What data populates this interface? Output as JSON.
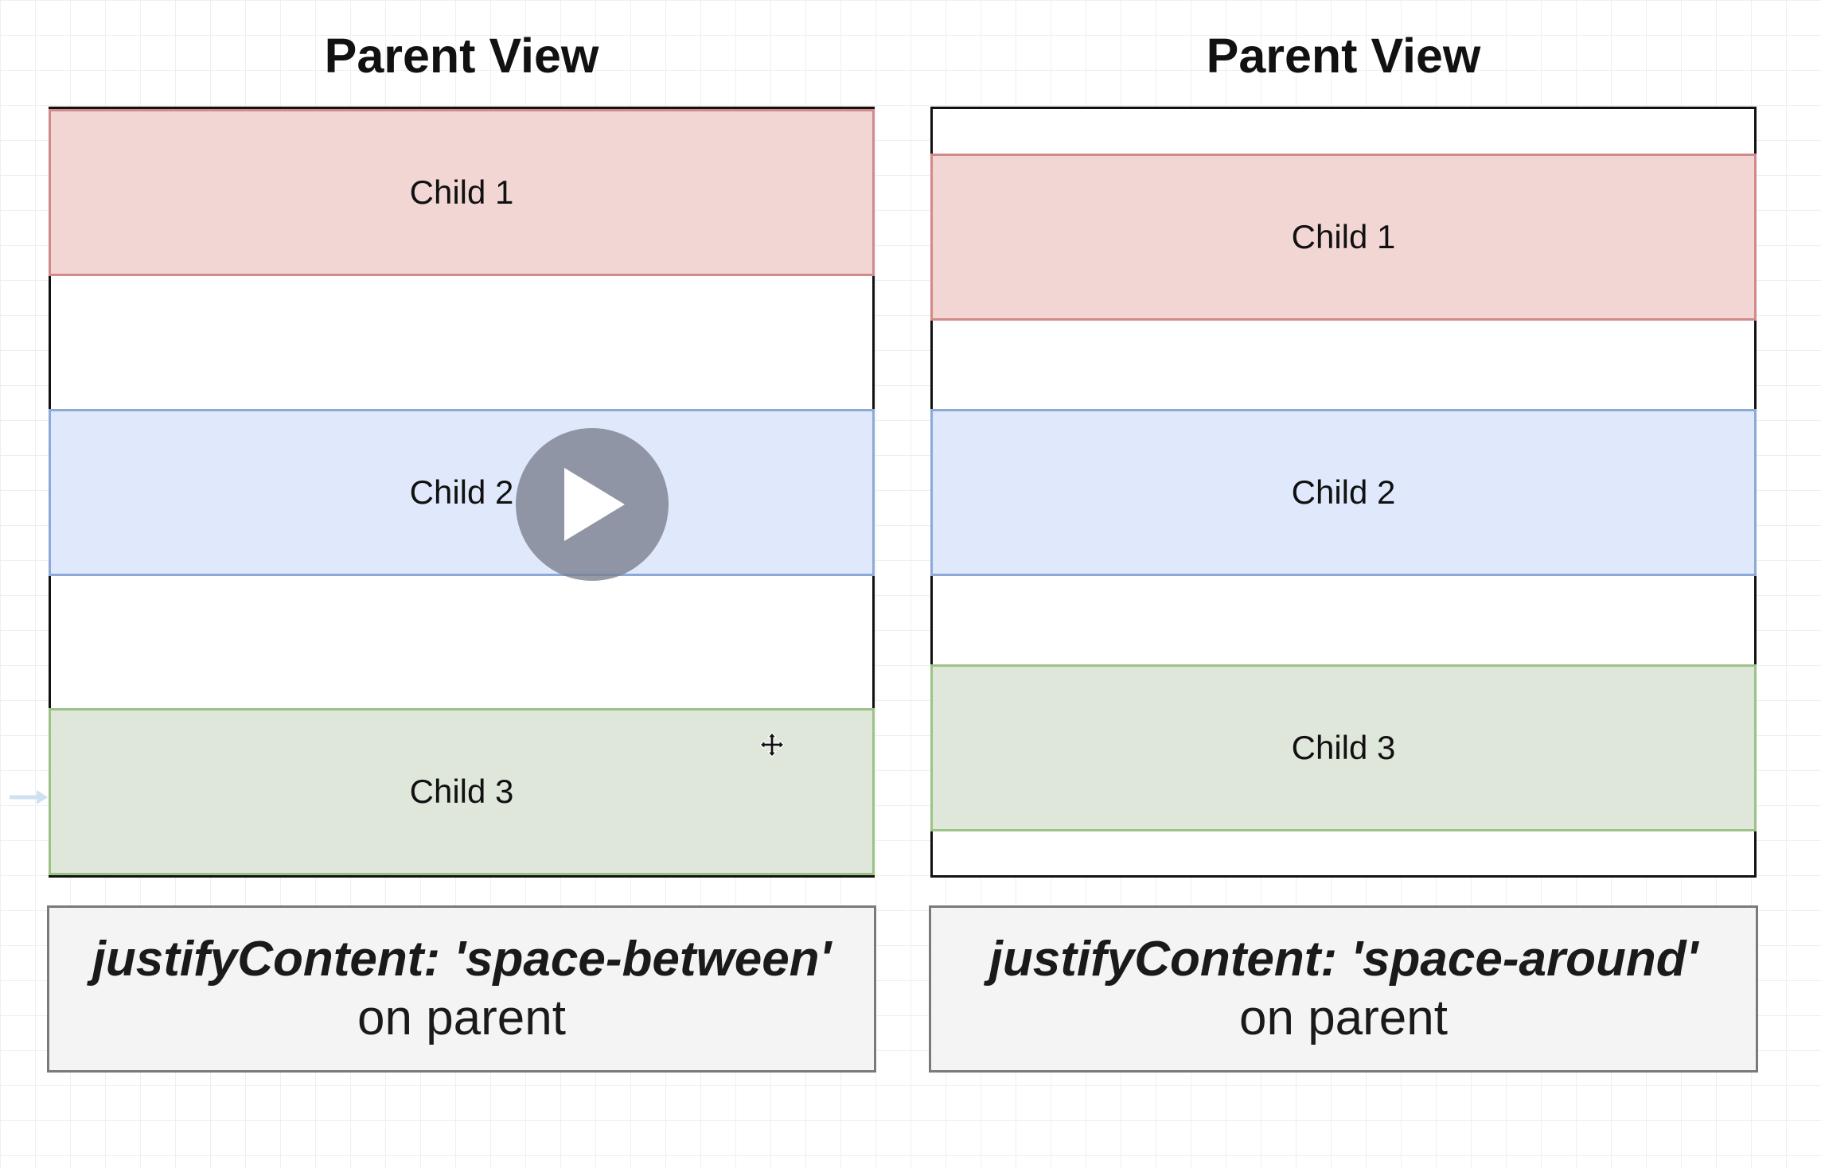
{
  "left_panel": {
    "title": "Parent View",
    "children": [
      "Child 1",
      "Child 2",
      "Child 3"
    ],
    "caption_code": "justifyContent: 'space-between'",
    "caption_sub": "on parent"
  },
  "right_panel": {
    "title": "Parent View",
    "children": [
      "Child 1",
      "Child 2",
      "Child 3"
    ],
    "caption_code": "justifyContent: 'space-around'",
    "caption_sub": "on parent"
  },
  "colors": {
    "child1_fill": "#f2d6d4",
    "child1_border": "#d1898a",
    "child2_fill": "#e0e9fb",
    "child2_border": "#8da9d8",
    "child3_fill": "#dfe7db",
    "child3_border": "#9cc287",
    "parent_border": "#111111"
  },
  "icons": {
    "play": "play-icon",
    "cursor": "move-cursor-icon"
  }
}
